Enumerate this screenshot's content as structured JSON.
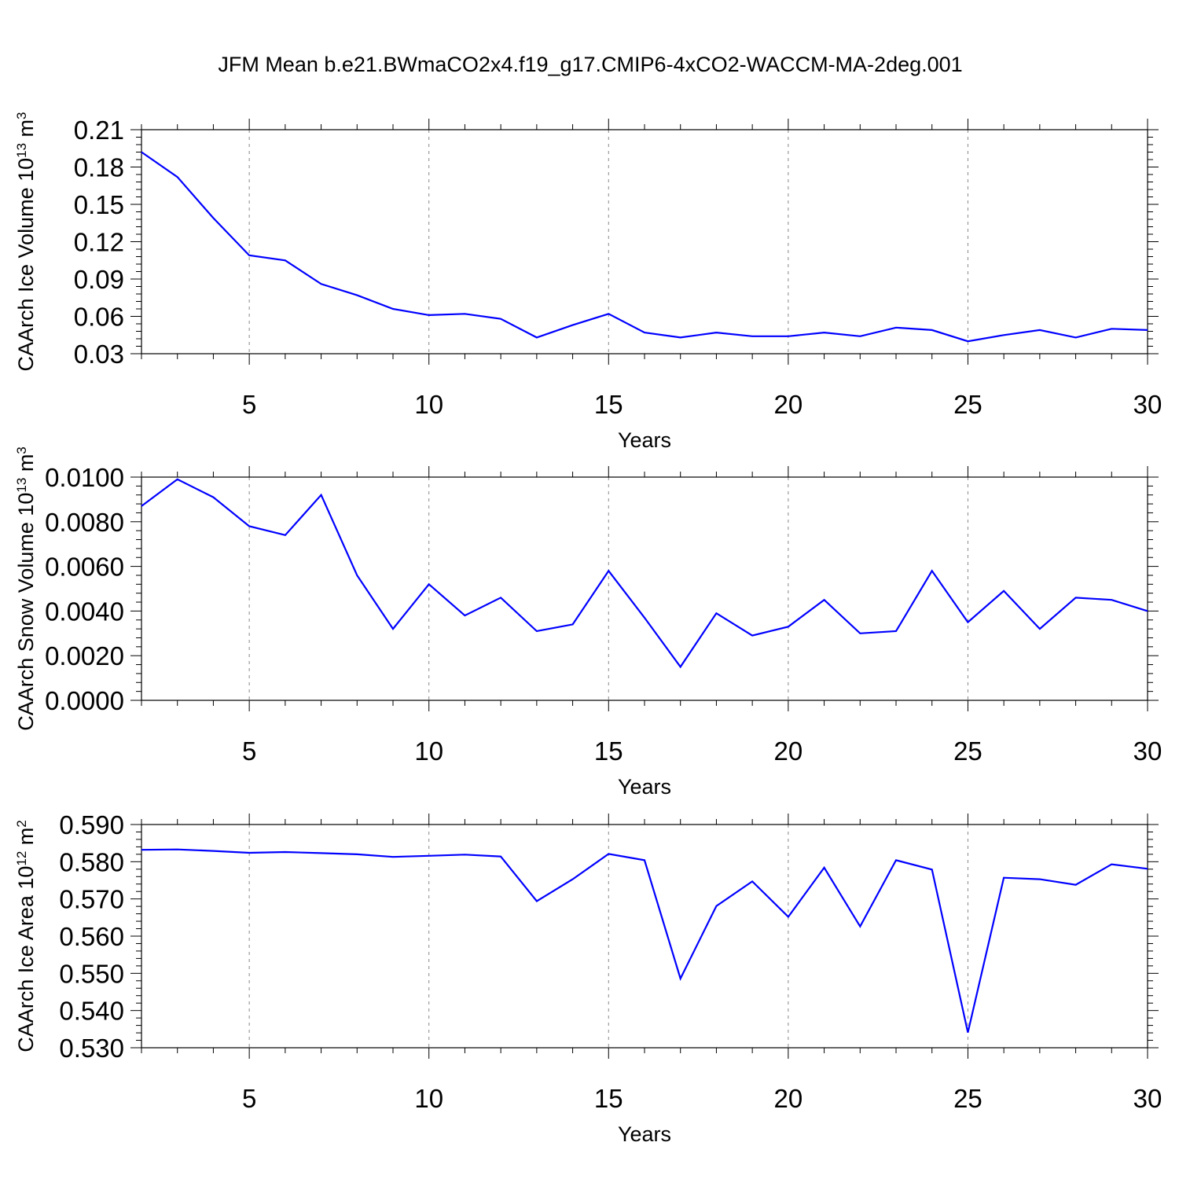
{
  "title": "JFM Mean b.e21.BWmaCO2x4.f19_g17.CMIP6-4xCO2-WACCM-MA-2deg.001",
  "colors": {
    "line": "#0000ff",
    "axis": "#000000",
    "grid": "#888888"
  },
  "chart_data": [
    {
      "type": "line",
      "ylabel": "CAArch Ice Volume 10",
      "ylabel_exp": "13",
      "ylabel_unit": "m",
      "ylabel_unit_exp": "3",
      "xlabel": "Years",
      "xlim": [
        2,
        30
      ],
      "ylim": [
        0.03,
        0.21
      ],
      "xticks": [
        5,
        10,
        15,
        20,
        25,
        30
      ],
      "yticks": [
        "0.03",
        "0.06",
        "0.09",
        "0.12",
        "0.15",
        "0.18",
        "0.21"
      ],
      "x": [
        2,
        3,
        4,
        5,
        6,
        7,
        8,
        9,
        10,
        11,
        12,
        13,
        14,
        15,
        16,
        17,
        18,
        19,
        20,
        21,
        22,
        23,
        24,
        25,
        26,
        27,
        28,
        29,
        30
      ],
      "values": [
        0.192,
        0.172,
        0.139,
        0.109,
        0.105,
        0.086,
        0.077,
        0.066,
        0.061,
        0.062,
        0.058,
        0.043,
        0.053,
        0.062,
        0.047,
        0.043,
        0.047,
        0.044,
        0.044,
        0.047,
        0.044,
        0.051,
        0.049,
        0.04,
        0.045,
        0.049,
        0.043,
        0.05,
        0.049
      ]
    },
    {
      "type": "line",
      "ylabel": "CAArch Snow Volume 10",
      "ylabel_exp": "13",
      "ylabel_unit": "m",
      "ylabel_unit_exp": "3",
      "xlabel": "Years",
      "xlim": [
        2,
        30
      ],
      "ylim": [
        0,
        0.01
      ],
      "xticks": [
        5,
        10,
        15,
        20,
        25,
        30
      ],
      "yticks": [
        "0.0000",
        "0.0020",
        "0.0040",
        "0.0060",
        "0.0080",
        "0.0100"
      ],
      "x": [
        2,
        3,
        4,
        5,
        6,
        7,
        8,
        9,
        10,
        11,
        12,
        13,
        14,
        15,
        16,
        17,
        18,
        19,
        20,
        21,
        22,
        23,
        24,
        25,
        26,
        27,
        28,
        29,
        30
      ],
      "values": [
        0.0087,
        0.0099,
        0.0091,
        0.0078,
        0.0074,
        0.0092,
        0.0056,
        0.0032,
        0.0052,
        0.0038,
        0.0046,
        0.0031,
        0.0034,
        0.0058,
        0.0037,
        0.0015,
        0.0039,
        0.0029,
        0.0033,
        0.0045,
        0.003,
        0.0031,
        0.0058,
        0.0035,
        0.0049,
        0.0032,
        0.0046,
        0.0045,
        0.004
      ]
    },
    {
      "type": "line",
      "ylabel": "CAArch Ice Area 10",
      "ylabel_exp": "12",
      "ylabel_unit": "m",
      "ylabel_unit_exp": "2",
      "xlabel": "Years",
      "xlim": [
        2,
        30
      ],
      "ylim": [
        0.53,
        0.59
      ],
      "xticks": [
        5,
        10,
        15,
        20,
        25,
        30
      ],
      "yticks": [
        "0.530",
        "0.540",
        "0.550",
        "0.560",
        "0.570",
        "0.580",
        "0.590"
      ],
      "x": [
        2,
        3,
        4,
        5,
        6,
        7,
        8,
        9,
        10,
        11,
        12,
        13,
        14,
        15,
        16,
        17,
        18,
        19,
        20,
        21,
        22,
        23,
        24,
        25,
        26,
        27,
        28,
        29,
        30
      ],
      "values": [
        0.5832,
        0.5833,
        0.5829,
        0.5824,
        0.5826,
        0.5823,
        0.582,
        0.5813,
        0.5816,
        0.5819,
        0.5814,
        0.5694,
        0.5753,
        0.5821,
        0.5804,
        0.5486,
        0.5681,
        0.5747,
        0.5652,
        0.5784,
        0.5626,
        0.5804,
        0.5779,
        0.5341,
        0.5757,
        0.5753,
        0.5738,
        0.5793,
        0.5781
      ]
    }
  ]
}
